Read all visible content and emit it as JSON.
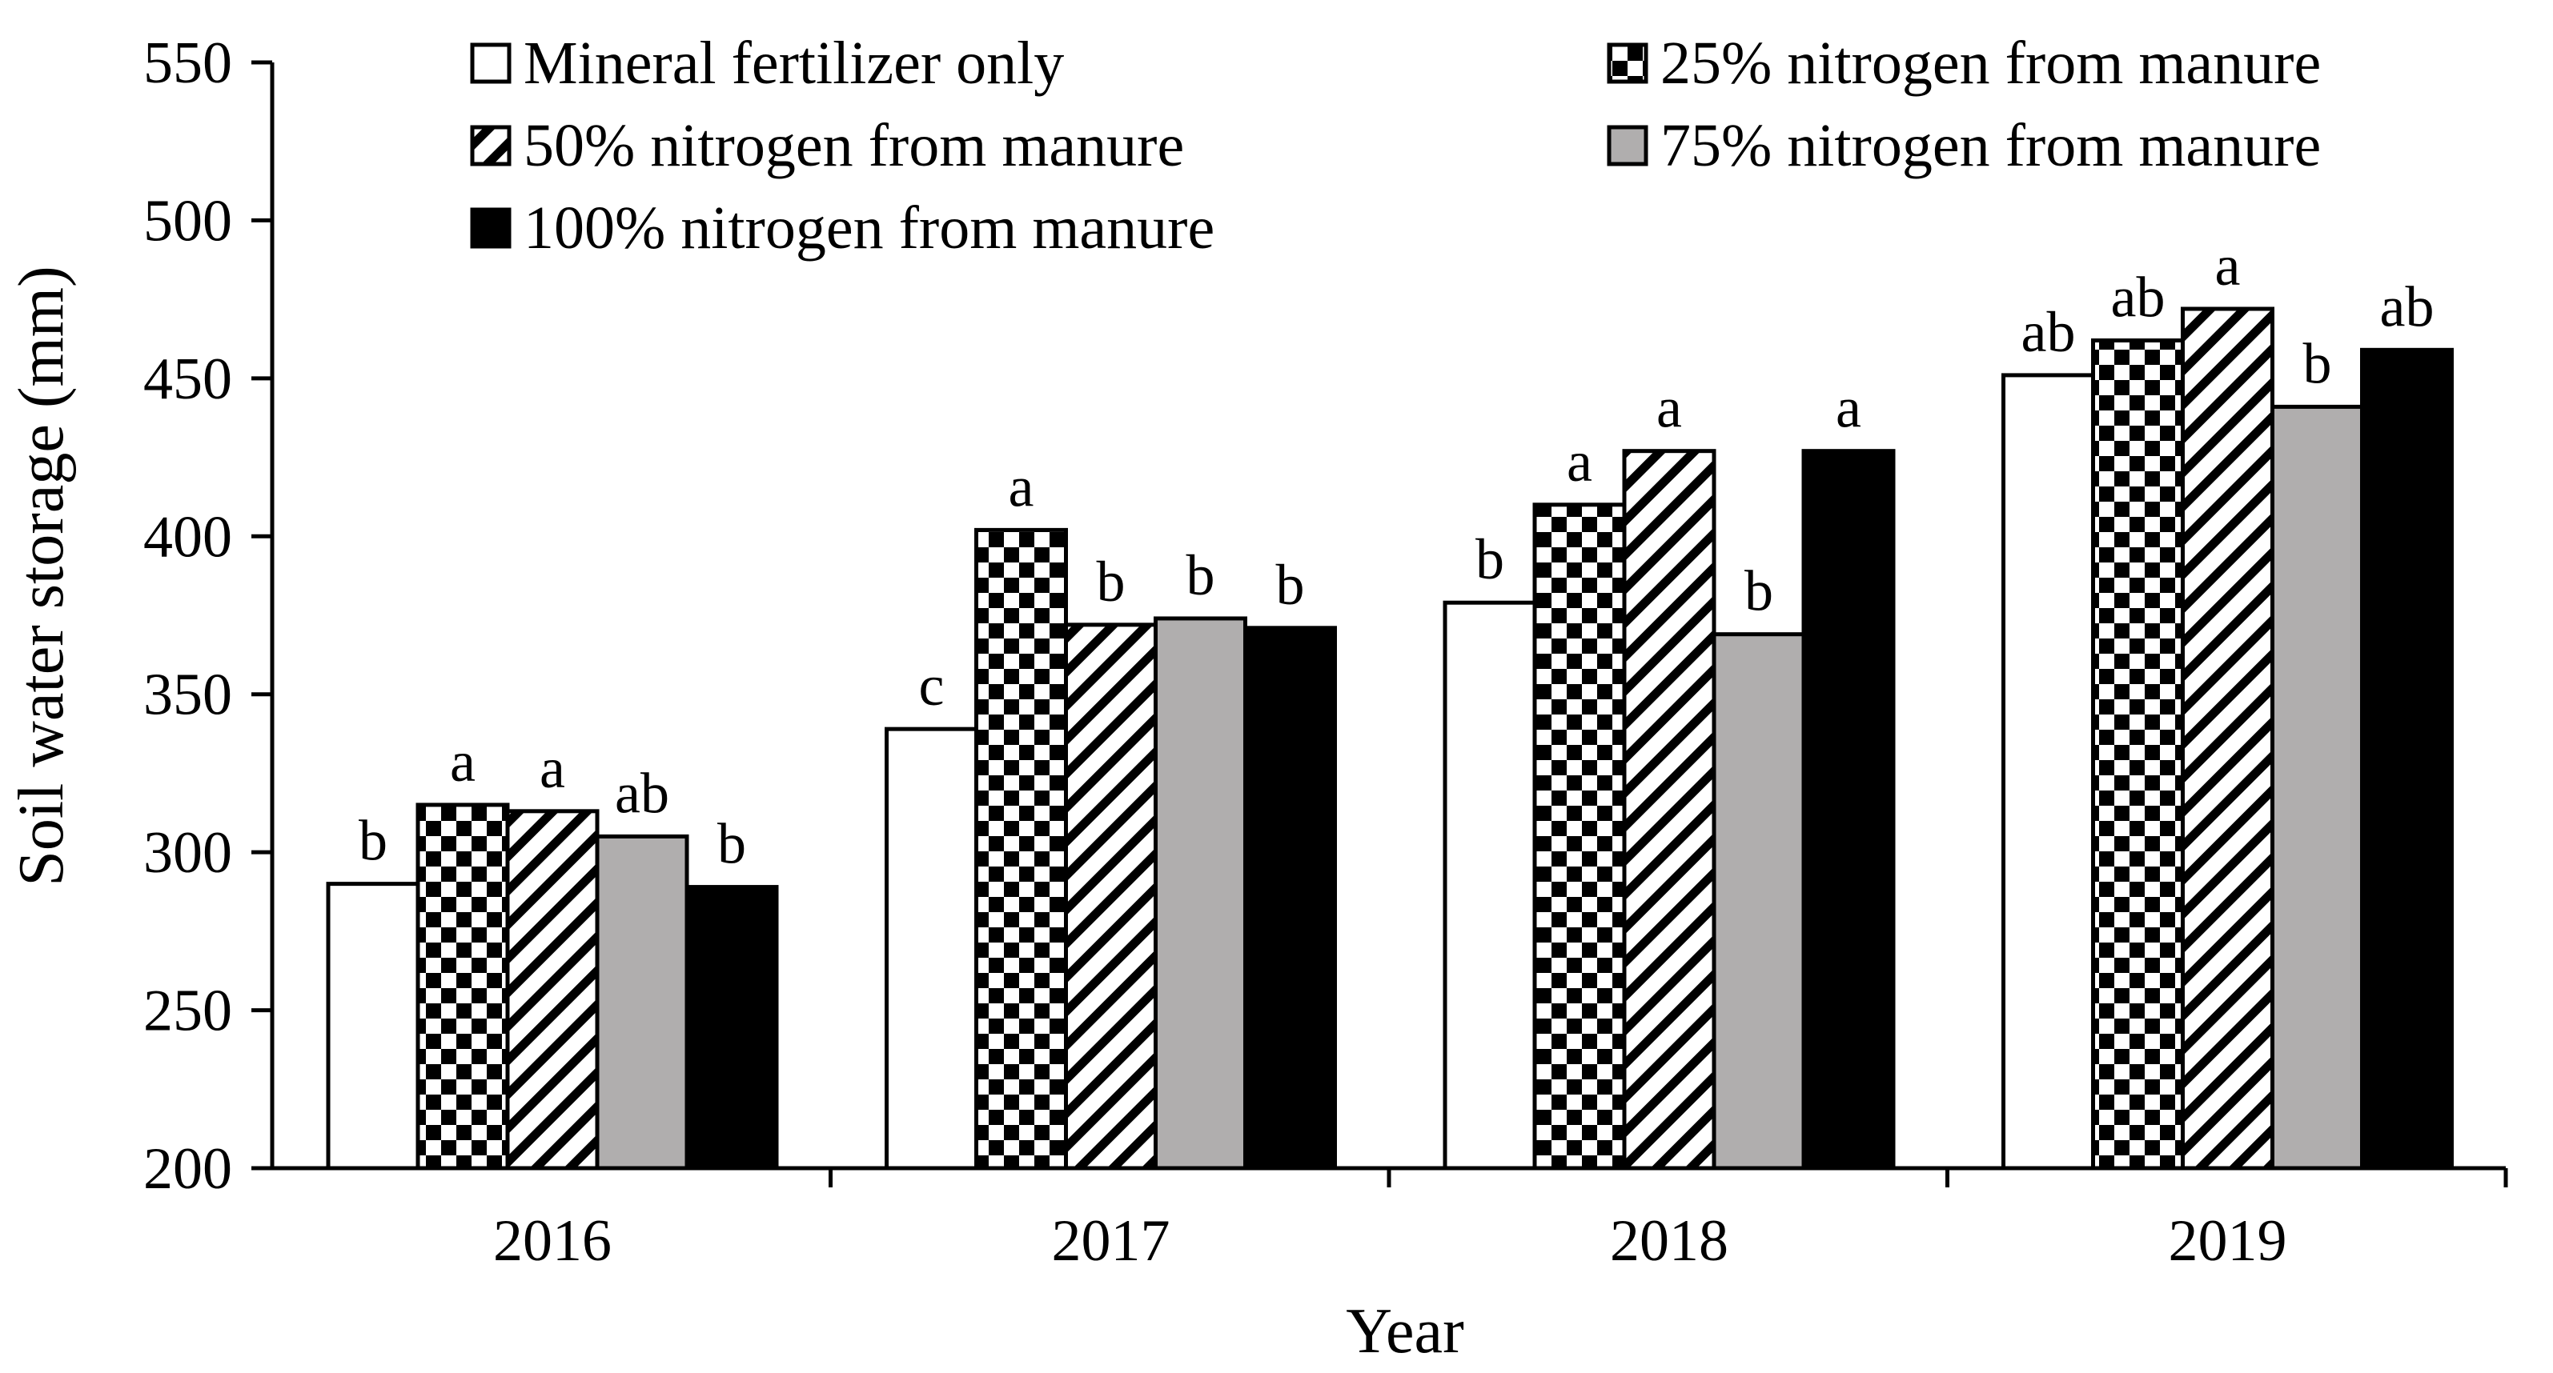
{
  "chart_data": {
    "type": "bar",
    "title": "",
    "xlabel": "Year",
    "ylabel": "Soil water storage (mm)",
    "ylim": [
      200,
      550
    ],
    "yticks": [
      "200",
      "250",
      "300",
      "350",
      "400",
      "450",
      "500",
      "550"
    ],
    "categories": [
      "2016",
      "2017",
      "2018",
      "2019"
    ],
    "legend_position": "top",
    "series": [
      {
        "name": "Mineral fertilizer only",
        "pattern": "white",
        "values": [
          290,
          339,
          379,
          451
        ],
        "labels": [
          "b",
          "c",
          "b",
          "ab"
        ]
      },
      {
        "name": "25% nitrogen from manure",
        "pattern": "checker",
        "values": [
          315,
          402,
          410,
          462
        ],
        "labels": [
          "a",
          "a",
          "a",
          "ab"
        ]
      },
      {
        "name": "50% nitrogen from manure",
        "pattern": "diagonal",
        "values": [
          313,
          372,
          427,
          472
        ],
        "labels": [
          "a",
          "b",
          "a",
          "a"
        ]
      },
      {
        "name": "75% nitrogen from manure",
        "pattern": "gray",
        "values": [
          305,
          374,
          369,
          441
        ],
        "labels": [
          "ab",
          "b",
          "b",
          "b"
        ]
      },
      {
        "name": "100% nitrogen from manure",
        "pattern": "black",
        "values": [
          289,
          371,
          427,
          459
        ],
        "labels": [
          "b",
          "b",
          "a",
          "ab"
        ]
      }
    ]
  },
  "colors": {
    "axis": "#000000",
    "gray_fill": "#b0aeae",
    "black_fill": "#000000",
    "white_fill": "#ffffff"
  }
}
